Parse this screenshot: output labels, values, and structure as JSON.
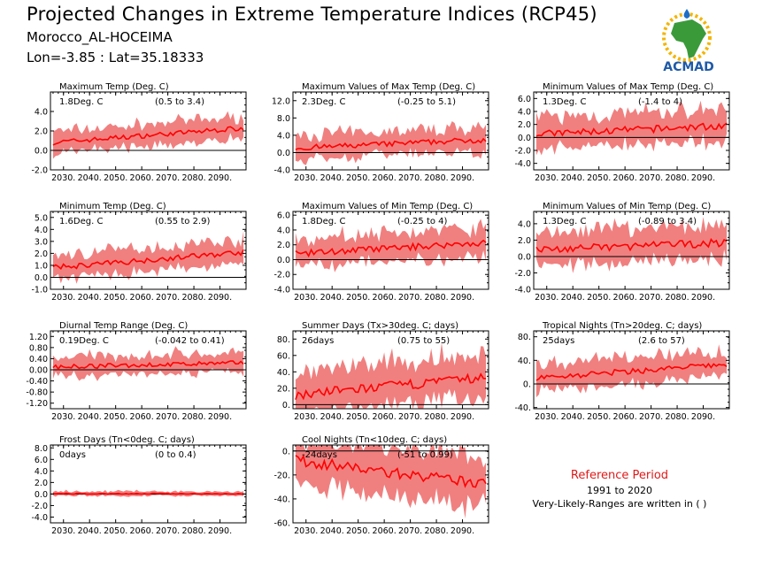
{
  "header": {
    "title": "Projected Changes in Extreme Temperature Indices (RCP45)",
    "location": "Morocco_AL-HOCEIMA",
    "coordinates": "Lon=-3.85 : Lat=35.18333"
  },
  "logo": {
    "text": "ACMAD",
    "icon": "africa-map-logo"
  },
  "reference": {
    "title": "Reference Period",
    "years": "1991 to 2020",
    "note": "Very-Likely-Ranges are written in ( )"
  },
  "colors": {
    "band": "#f08080",
    "line": "#ff0000",
    "zero": "#000000",
    "ref_title": "#e01818"
  },
  "x_ticks": [
    "2030.",
    "2040.",
    "2050.",
    "2060.",
    "2070.",
    "2080.",
    "2090."
  ],
  "chart_data": [
    {
      "type": "line",
      "title": "Maximum Temp (Deg. C)",
      "change": "1.8Deg. C",
      "range": "(0.5 to 3.4)",
      "xlim": [
        2025,
        2100
      ],
      "ylim": [
        -2,
        6
      ],
      "yticks": [
        "4.0",
        "2.0",
        "0.0",
        "-2.0"
      ],
      "ytick_values": [
        4,
        2,
        0,
        -2
      ],
      "start": 0.8,
      "end": 2.3,
      "spread": 1.1
    },
    {
      "type": "line",
      "title": "Maximum Values of Max Temp (Deg. C)",
      "change": "2.3Deg. C",
      "range": "(-0.25 to 5.1)",
      "xlim": [
        2025,
        2100
      ],
      "ylim": [
        -4,
        14
      ],
      "yticks": [
        "12.0",
        "8.0",
        "4.0",
        "0.0",
        "-4.0"
      ],
      "ytick_values": [
        12,
        8,
        4,
        0,
        -4
      ],
      "start": 1.0,
      "end": 3.0,
      "spread": 2.8
    },
    {
      "type": "line",
      "title": "Minimum Values of Max Temp (Deg. C)",
      "change": "1.3Deg. C",
      "range": "(-1.4 to 4)",
      "xlim": [
        2025,
        2100
      ],
      "ylim": [
        -5,
        7
      ],
      "yticks": [
        "6.0",
        "4.0",
        "2.0",
        "0.0",
        "-2.0",
        "-4.0"
      ],
      "ytick_values": [
        6,
        4,
        2,
        0,
        -2,
        -4
      ],
      "start": 0.5,
      "end": 1.8,
      "spread": 2.4
    },
    {
      "type": "line",
      "title": "Minimum Temp (Deg. C)",
      "change": "1.6Deg. C",
      "range": "(0.55 to 2.9)",
      "xlim": [
        2025,
        2100
      ],
      "ylim": [
        -1,
        5.5
      ],
      "yticks": [
        "5.0",
        "4.0",
        "3.0",
        "2.0",
        "1.0",
        "0.0",
        "-1.0"
      ],
      "ytick_values": [
        5,
        4,
        3,
        2,
        1,
        0,
        -1
      ],
      "start": 0.8,
      "end": 2.1,
      "spread": 1.0
    },
    {
      "type": "line",
      "title": "Maximum Values of Min Temp (Deg. C)",
      "change": "1.8Deg. C",
      "range": "(-0.25 to 4)",
      "xlim": [
        2025,
        2100
      ],
      "ylim": [
        -4,
        6.5
      ],
      "yticks": [
        "6.0",
        "4.0",
        "2.0",
        "0.0",
        "-2.0",
        "-4.0"
      ],
      "ytick_values": [
        6,
        4,
        2,
        0,
        -2,
        -4
      ],
      "start": 0.8,
      "end": 2.3,
      "spread": 1.9
    },
    {
      "type": "line",
      "title": "Minimum Values of Min Temp (Deg. C)",
      "change": "1.3Deg. C",
      "range": "(-0.89 to 3.4)",
      "xlim": [
        2025,
        2100
      ],
      "ylim": [
        -4,
        5.5
      ],
      "yticks": [
        "4.0",
        "2.0",
        "0.0",
        "-2.0",
        "-4.0"
      ],
      "ytick_values": [
        4,
        2,
        0,
        -2,
        -4
      ],
      "start": 0.8,
      "end": 1.7,
      "spread": 2.1
    },
    {
      "type": "line",
      "title": "Diurnal Temp Range (Deg. C)",
      "change": "0.19Deg. C",
      "range": "(-0.042 to 0.41)",
      "xlim": [
        2025,
        2100
      ],
      "ylim": [
        -1.4,
        1.4
      ],
      "yticks": [
        "1.20",
        "0.80",
        "0.40",
        "0.00",
        "-0.40",
        "-0.80",
        "-1.20"
      ],
      "ytick_values": [
        1.2,
        0.8,
        0.4,
        0,
        -0.4,
        -0.8,
        -1.2
      ],
      "start": 0.1,
      "end": 0.25,
      "spread": 0.35
    },
    {
      "type": "line",
      "title": "Summer Days (Tx>30deg. C; days)",
      "change": "26days",
      "range": "(0.75 to 55)",
      "xlim": [
        2025,
        2100
      ],
      "ylim": [
        -5,
        90
      ],
      "yticks": [
        "80.",
        "60.",
        "40.",
        "20.",
        "0."
      ],
      "ytick_values": [
        80,
        60,
        40,
        20,
        0
      ],
      "start": 12,
      "end": 33,
      "spread": 26
    },
    {
      "type": "line",
      "title": "Tropical Nights (Tn>20deg. C; days)",
      "change": "25days",
      "range": "(2.6 to 57)",
      "xlim": [
        2025,
        2100
      ],
      "ylim": [
        -42,
        90
      ],
      "yticks": [
        "80.",
        "40.",
        "0.",
        "-40."
      ],
      "ytick_values": [
        80,
        40,
        0,
        -40
      ],
      "start": 10,
      "end": 33,
      "spread": 22
    },
    {
      "type": "line",
      "title": "Frost Days (Tn<0deg. C; days)",
      "change": "0days",
      "range": "(0 to 0.4)",
      "xlim": [
        2025,
        2100
      ],
      "ylim": [
        -5,
        8.5
      ],
      "yticks": [
        "8.0",
        "6.0",
        "4.0",
        "2.0",
        "0.0",
        "-2.0",
        "-4.0"
      ],
      "ytick_values": [
        8,
        6,
        4,
        2,
        0,
        -2,
        -4
      ],
      "start": 0.05,
      "end": 0.05,
      "spread": 0.4
    },
    {
      "type": "line",
      "title": "Cool Nights (Tn<10deg. C; days)",
      "change": "-24days",
      "range": "(-51 to 0.99)",
      "xlim": [
        2025,
        2100
      ],
      "ylim": [
        -60,
        5
      ],
      "yticks": [
        "0.",
        "-20.",
        "-40.",
        "-60."
      ],
      "ytick_values": [
        0,
        -20,
        -40,
        -60
      ],
      "start": -8,
      "end": -28,
      "spread": 20
    }
  ]
}
